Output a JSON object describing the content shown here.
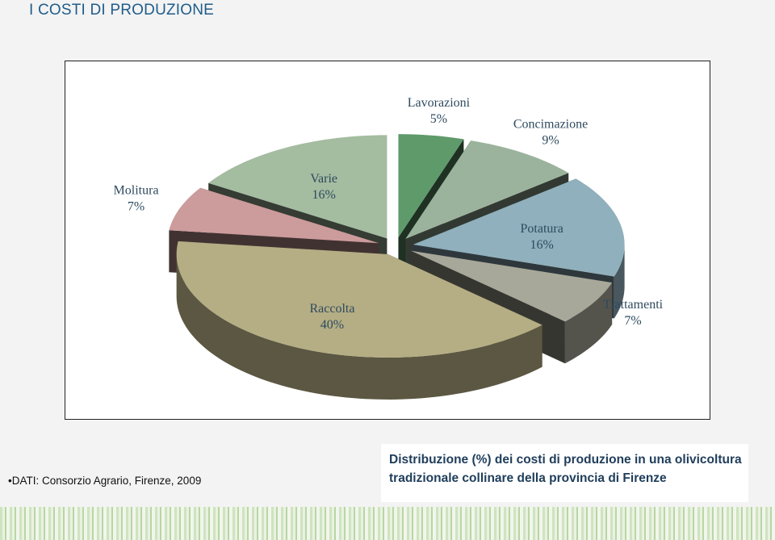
{
  "title": "I COSTI DI PRODUZIONE",
  "source": "DATI: Consorzio Agrario, Firenze, 2009",
  "caption": "Distribuzione (%) dei costi di produzione in una olivicoltura tradizionale collinare della provincia di Firenze",
  "chart_data": {
    "type": "pie",
    "categories": [
      "Lavorazioni",
      "Concimazione",
      "Potatura",
      "Trattamenti",
      "Raccolta",
      "Molitura",
      "Varie"
    ],
    "values": [
      5,
      9,
      16,
      7,
      40,
      7,
      16
    ],
    "value_labels": [
      "5%",
      "9%",
      "16%",
      "7%",
      "40%",
      "7%",
      "16%"
    ],
    "colors": [
      "#5f9a6a",
      "#9bb39c",
      "#8fb0bc",
      "#a8a89a",
      "#b5ae84",
      "#cc9b9b",
      "#a4bca0"
    ]
  }
}
